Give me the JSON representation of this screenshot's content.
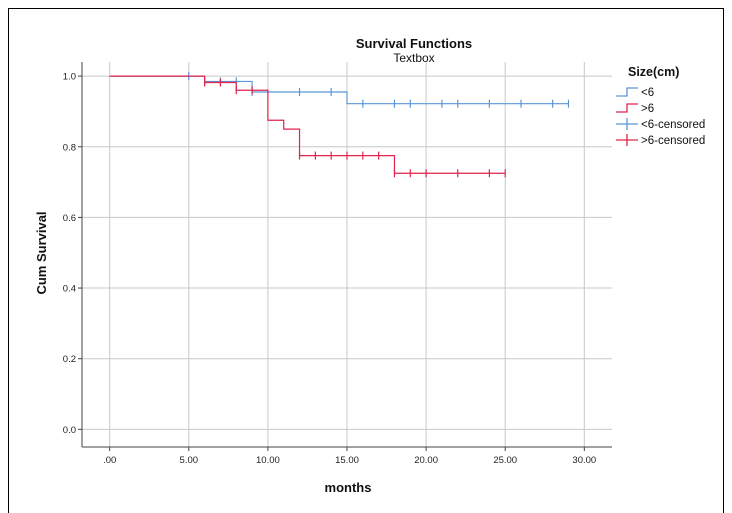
{
  "chart_data": {
    "type": "line",
    "title": "Survival Functions",
    "subtitle": "Textbox",
    "xlabel": "months",
    "ylabel": "Cum Survival",
    "xlim": [
      -1.75,
      31.75
    ],
    "ylim": [
      -0.05,
      1.04
    ],
    "x_ticks": [
      0,
      5,
      10,
      15,
      20,
      25,
      30
    ],
    "x_tick_labels": [
      ".00",
      "5.00",
      "10.00",
      "15.00",
      "20.00",
      "25.00",
      "30.00"
    ],
    "y_ticks": [
      0,
      0.2,
      0.4,
      0.6,
      0.8,
      1.0
    ],
    "y_tick_labels": [
      "0.0",
      "0.2",
      "0.4",
      "0.6",
      "0.8",
      "1.0"
    ],
    "grid": true,
    "legend_title": "Size(cm)",
    "legend_position": "right",
    "series": [
      {
        "name": "<6",
        "color": "#5a96d8",
        "steps": [
          [
            0,
            1.0
          ],
          [
            6,
            0.985
          ],
          [
            9,
            0.955
          ],
          [
            15,
            0.922
          ],
          [
            29,
            0.922
          ]
        ],
        "censored_name": "<6-censored",
        "censored": [
          [
            5,
            1.0
          ],
          [
            6,
            0.985
          ],
          [
            7,
            0.985
          ],
          [
            8,
            0.985
          ],
          [
            9,
            0.955
          ],
          [
            12,
            0.955
          ],
          [
            14,
            0.955
          ],
          [
            16,
            0.922
          ],
          [
            18,
            0.922
          ],
          [
            19,
            0.922
          ],
          [
            21,
            0.922
          ],
          [
            22,
            0.922
          ],
          [
            24,
            0.922
          ],
          [
            26,
            0.922
          ],
          [
            28,
            0.922
          ],
          [
            29,
            0.922
          ]
        ]
      },
      {
        "name": ">6",
        "color": "#e0244c",
        "steps": [
          [
            0,
            1.0
          ],
          [
            6,
            0.982
          ],
          [
            8,
            0.96
          ],
          [
            10,
            0.875
          ],
          [
            11,
            0.85
          ],
          [
            12,
            0.775
          ],
          [
            18,
            0.725
          ],
          [
            25,
            0.725
          ]
        ],
        "censored_name": ">6-censored",
        "censored": [
          [
            6,
            0.982
          ],
          [
            7,
            0.982
          ],
          [
            8,
            0.96
          ],
          [
            9,
            0.96
          ],
          [
            12,
            0.775
          ],
          [
            13,
            0.775
          ],
          [
            14,
            0.775
          ],
          [
            15,
            0.775
          ],
          [
            16,
            0.775
          ],
          [
            17,
            0.775
          ],
          [
            18,
            0.725
          ],
          [
            19,
            0.725
          ],
          [
            20,
            0.725
          ],
          [
            22,
            0.725
          ],
          [
            24,
            0.725
          ],
          [
            25,
            0.725
          ]
        ]
      }
    ]
  }
}
